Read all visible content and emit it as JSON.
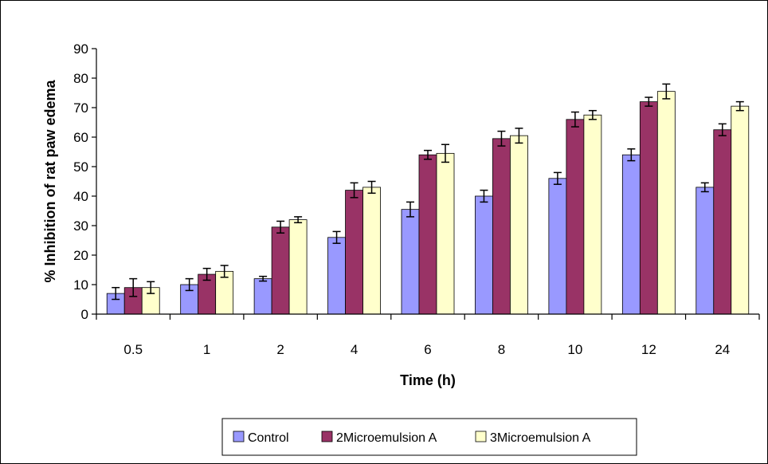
{
  "chart_data": {
    "type": "bar",
    "title": "",
    "xlabel": "Time (h)",
    "ylabel": "% Inhibition of rat paw edema",
    "ylim": [
      0,
      90
    ],
    "yticks": [
      0,
      10,
      20,
      30,
      40,
      50,
      60,
      70,
      80,
      90
    ],
    "categories": [
      "0.5",
      "1",
      "2",
      "4",
      "6",
      "8",
      "10",
      "12",
      "24"
    ],
    "grid": false,
    "legend": "bottom",
    "series": [
      {
        "name": "Control",
        "color": "#9999FF",
        "values": [
          7,
          10,
          12,
          26,
          35.5,
          40,
          46,
          54,
          43
        ],
        "errors": [
          2,
          2,
          0.8,
          2,
          2.5,
          2,
          2,
          2,
          1.5
        ]
      },
      {
        "name": "2Microemulsion A",
        "color": "#993366",
        "values": [
          9,
          13.5,
          29.5,
          42,
          54,
          59.5,
          66,
          72,
          62.5
        ],
        "errors": [
          3,
          2,
          2,
          2.5,
          1.5,
          2.5,
          2.5,
          1.5,
          2
        ]
      },
      {
        "name": "3Microemulsion A",
        "color": "#FFFFCC",
        "values": [
          9,
          14.5,
          32,
          43,
          54.5,
          60.5,
          67.5,
          75.5,
          70.5
        ],
        "errors": [
          2,
          2,
          1,
          2,
          3,
          2.5,
          1.5,
          2.5,
          1.5
        ]
      }
    ]
  }
}
